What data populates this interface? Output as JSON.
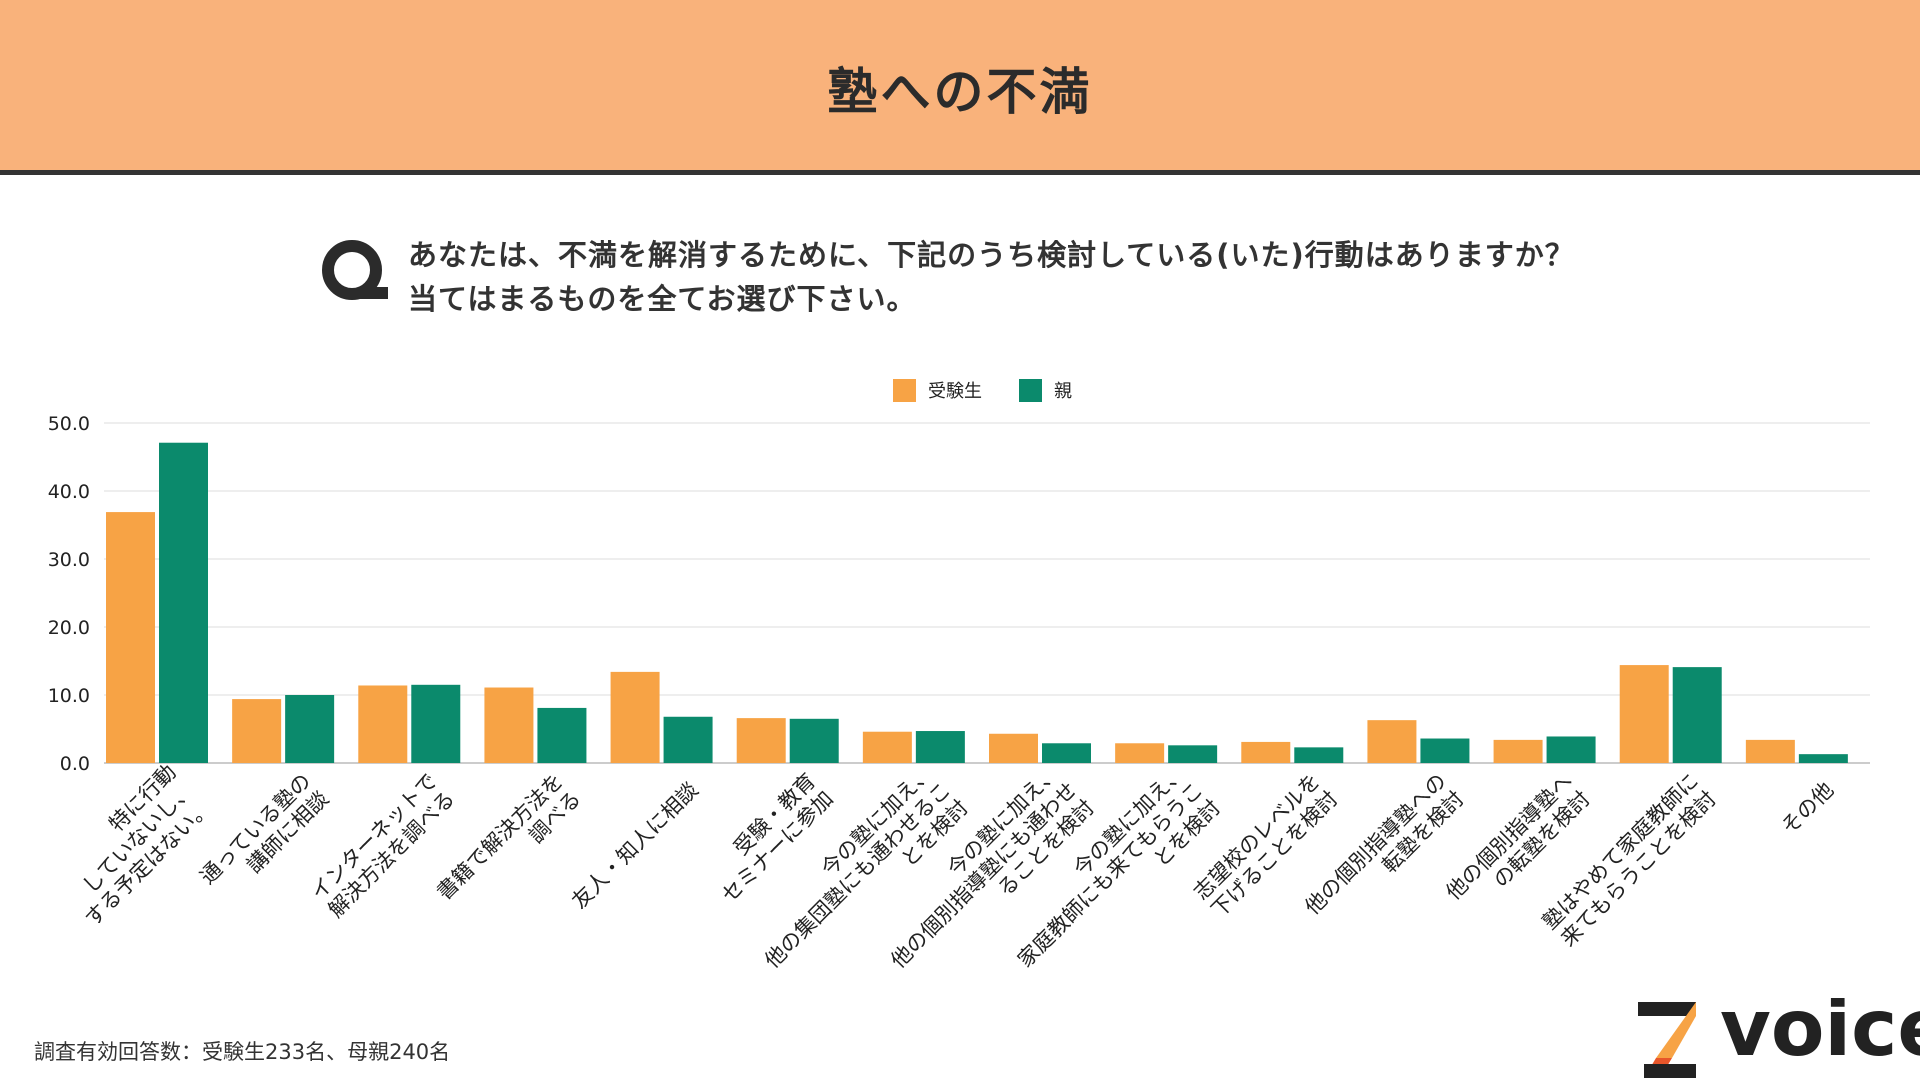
{
  "header": {
    "title": "塾への不満"
  },
  "question": {
    "line1": "あなたは、不満を解消するために、下記のうち検討している(いた)行動はありますか？",
    "line2": "当てはまるものを全てお選び下さい。"
  },
  "footnote": "調査有効回答数：受験生233名、母親240名",
  "logo": {
    "text": "voice"
  },
  "colors": {
    "student": "#f7a345",
    "parent": "#0b8a6c",
    "header_bg": "#f9b27b"
  },
  "chart_data": {
    "type": "bar",
    "title": "",
    "xlabel": "",
    "ylabel": "",
    "ylim": [
      0,
      50
    ],
    "yticks": [
      "0.0",
      "10.0",
      "20.0",
      "30.0",
      "40.0",
      "50.0"
    ],
    "grid": true,
    "legend_position": "top-center",
    "categories": [
      [
        "特に行動",
        "していないし、",
        "する予定はない。"
      ],
      [
        "通っている塾の",
        "講師に相談"
      ],
      [
        "インターネットで",
        "解決方法を調べる"
      ],
      [
        "書籍で解決方法を",
        "調べる"
      ],
      [
        "友人・知人に相談"
      ],
      [
        "受験・教育",
        "セミナーに参加"
      ],
      [
        "今の塾に加え、",
        "他の集団塾にも通わせるこ",
        "とを検討"
      ],
      [
        "今の塾に加え、",
        "他の個別指導塾にも通わせ",
        "ることを検討"
      ],
      [
        "今の塾に加え、",
        "家庭教師にも来てもらうこ",
        "とを検討"
      ],
      [
        "志望校のレベルを",
        "下げることを検討"
      ],
      [
        "他の個別指導塾への",
        "転塾を検討"
      ],
      [
        "他の個別指導塾へ",
        "の転塾を検討"
      ],
      [
        "塾はやめて家庭教師に",
        "来てもらうことを検討"
      ],
      [
        "その他"
      ]
    ],
    "series": [
      {
        "name": "受験生",
        "color": "#f7a345",
        "values": [
          36.9,
          9.4,
          11.4,
          11.1,
          13.4,
          6.6,
          4.6,
          4.3,
          2.9,
          3.1,
          6.3,
          3.4,
          14.4,
          3.4
        ]
      },
      {
        "name": "親",
        "color": "#0b8a6c",
        "values": [
          47.1,
          10.0,
          11.5,
          8.1,
          6.8,
          6.5,
          4.7,
          2.9,
          2.6,
          2.3,
          3.6,
          3.9,
          14.1,
          1.3
        ]
      }
    ]
  }
}
